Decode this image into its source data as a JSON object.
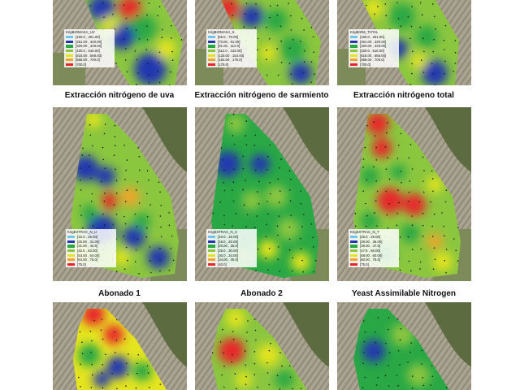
{
  "titles": {
    "uva": "Extracción nitrógeno de uva",
    "sarmiento": "Extracción nitrógeno de sarmiento",
    "total": "Extracción nitrógeno total",
    "abonado1": "Abonado 1",
    "abonado2": "Abonado 2",
    "yan": "Yeast Assimilable Nitrogen"
  },
  "colors": {
    "class1": "#6ec6ea",
    "class2": "#2337b0",
    "class3": "#29a845",
    "class4": "#8bc63f",
    "class5": "#e4e41f",
    "class6": "#f0a52a",
    "class7": "#e8262a"
  },
  "legends": {
    "biomasa_uva": {
      "title": "KrigBIOMASA_UV",
      "items": [
        "[160.0 , 261.00]",
        "[261.00 , 320.00]",
        "[320.00 , 420.00]",
        "[420.0 , 516.00]",
        "[516.00 , 566.00]",
        "[566.00 , 700.0]",
        "[700.0]"
      ]
    },
    "biomasa_sarm": {
      "title": "KrigBIOMASA_S",
      "items": [
        "[65.0 , 70.00]",
        "[70.00 , 91.00]",
        "[91.00 , 112.0]",
        "[112.0 , 133.00]",
        "[133.00 , 154.00]",
        "[154.00 , 175.0]",
        "[175.0]"
      ]
    },
    "biom_total": {
      "title": "KrigBIOM_TOTAL",
      "items": [
        "[160.0 , 261.00]",
        "[261.00 , 320.00]",
        "[320.00 , 420.00]",
        "[420.0 , 516.00]",
        "[516.00 , 566.00]",
        "[566.00 , 700.0]",
        "[700.0]"
      ]
    },
    "extrac_uva": {
      "title": "KrigEXTRAC_N_U",
      "items": [
        "[15.0 , 25.00]",
        "[25.00 , 31.00]",
        "[31.00 , 42.5]",
        "[42.5 , 53.00]",
        "[53.00 , 64.00]",
        "[64.00 , 75.0]",
        "[75.0]"
      ]
    },
    "extrac_sarm": {
      "title": "KrigEXTRAC_N_S",
      "items": [
        "[10.0 , 15.00]",
        "[15.0 , 20.00]",
        "[20.00 , 25.0]",
        "[25.0 , 30.00]",
        "[30.0 , 34.00]",
        "[34.00 , 40.0]",
        "[40.0]"
      ]
    },
    "extrac_total": {
      "title": "KrigEXTRAC_N_T",
      "items": [
        "[25.0 , 29.00]",
        "[29.00 , 36.00]",
        "[36.00 , 47.5]",
        "[47.5 , 58.00]",
        "[58.00 , 60.00]",
        "[60.00 , 75.0]",
        "[75.0]"
      ]
    }
  }
}
